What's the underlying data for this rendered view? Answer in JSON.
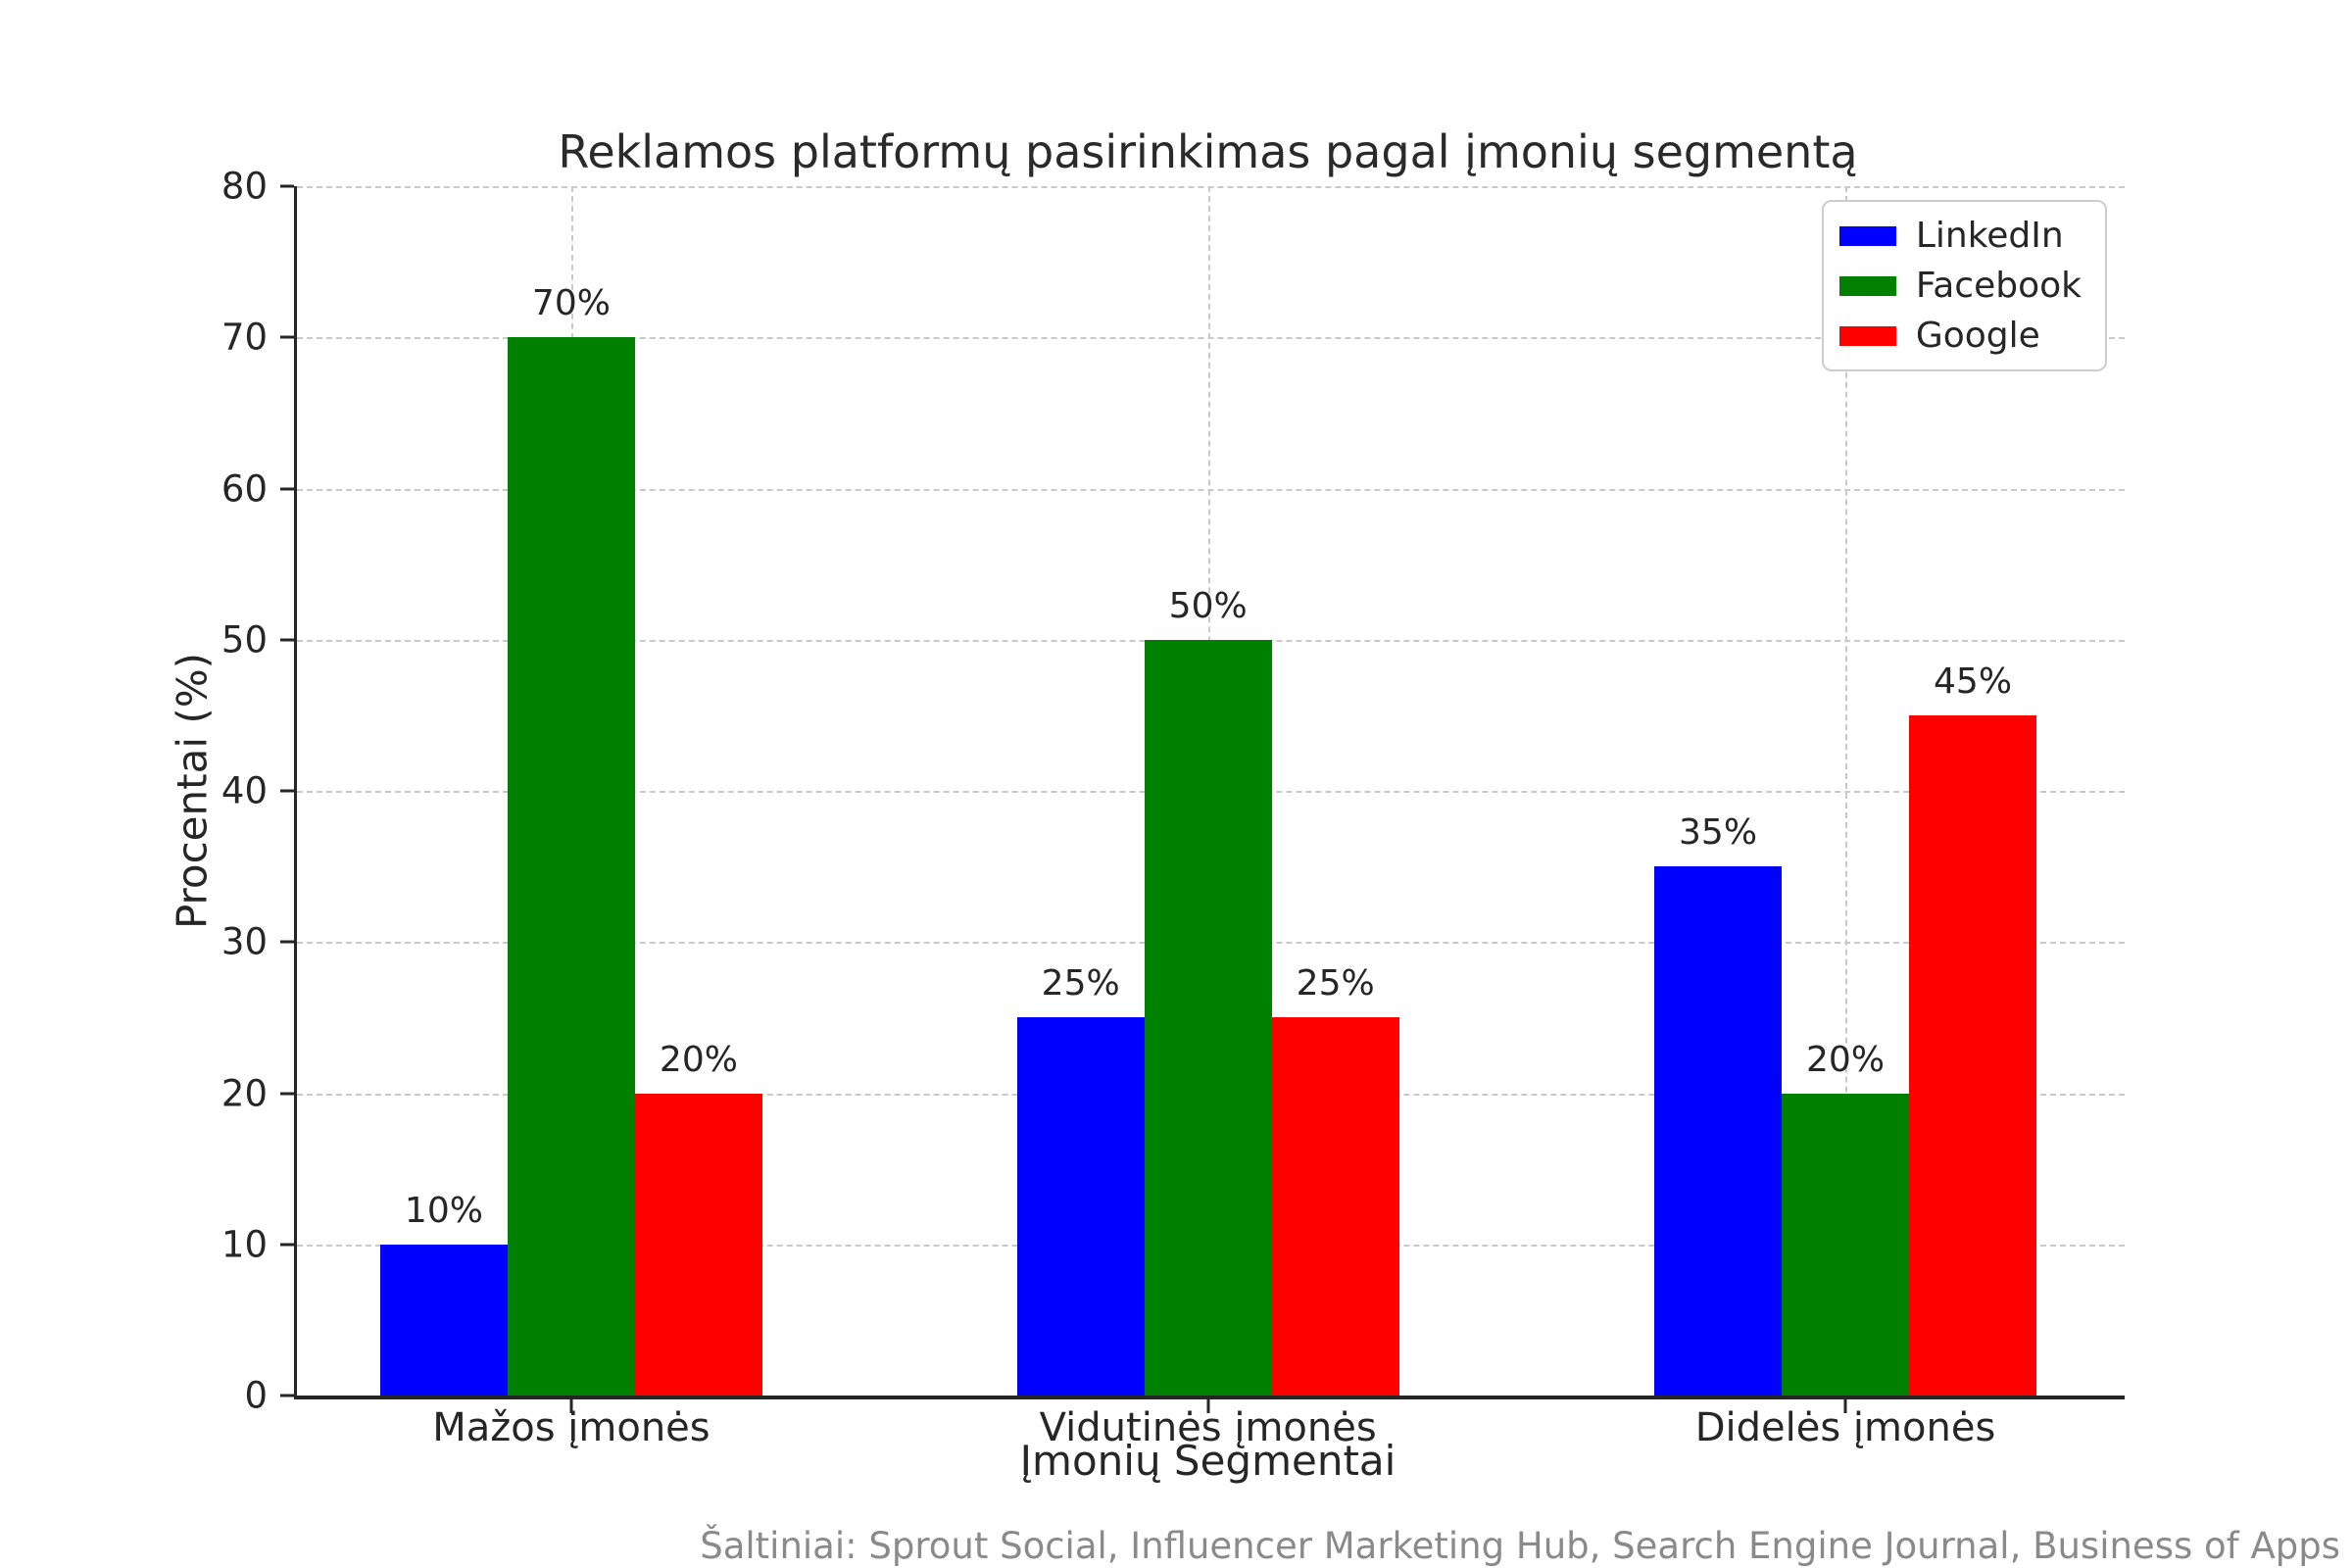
{
  "chart_data": {
    "type": "bar",
    "title": "Reklamos platformų pasirinkimas pagal įmonių segmentą",
    "xlabel": "Įmonių Segmentai",
    "ylabel": "Procentai (%)",
    "categories": [
      "Mažos įmonės",
      "Vidutinės įmonės",
      "Didelės įmonės"
    ],
    "series": [
      {
        "name": "LinkedIn",
        "color": "#0000ff",
        "values": [
          10,
          25,
          35
        ]
      },
      {
        "name": "Facebook",
        "color": "#008000",
        "values": [
          70,
          50,
          20
        ]
      },
      {
        "name": "Google",
        "color": "#ff0000",
        "values": [
          20,
          25,
          45
        ]
      }
    ],
    "bar_labels": [
      [
        "10%",
        "25%",
        "35%"
      ],
      [
        "70%",
        "50%",
        "20%"
      ],
      [
        "20%",
        "25%",
        "45%"
      ]
    ],
    "ylim": [
      0,
      80
    ],
    "ytick_step": 10,
    "ytick_labels": [
      "0",
      "10",
      "20",
      "30",
      "40",
      "50",
      "60",
      "70",
      "80"
    ],
    "grid": "dashed-both",
    "legend_position": "upper-right"
  },
  "footer": {
    "source_note": "Šaltiniai: Sprout Social, Influencer Marketing Hub, Search Engine Journal, Business of Apps"
  },
  "colors": {
    "background": "#ffffff",
    "text": "#262626",
    "grid": "#c9c9c9",
    "spine": "#262626",
    "footer_text": "#8a8a8a"
  }
}
